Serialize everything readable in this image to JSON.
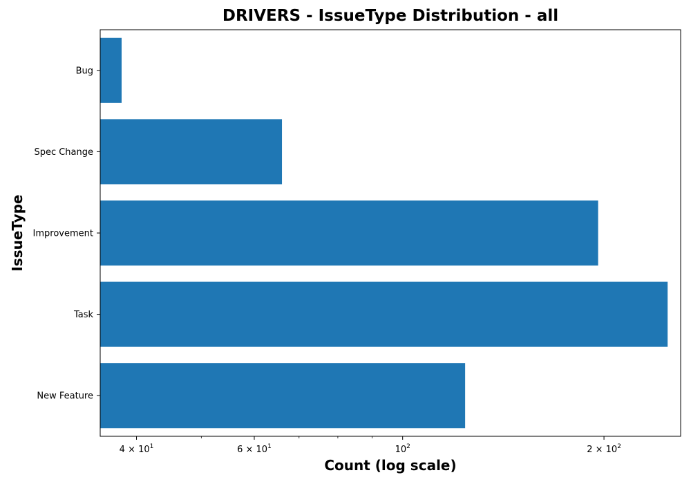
{
  "chart_data": {
    "type": "bar",
    "orientation": "horizontal",
    "title": "DRIVERS - IssueType Distribution - all",
    "xlabel": "Count (log scale)",
    "ylabel": "IssueType",
    "x_scale": "log",
    "xlim": [
      35.3,
      260.4
    ],
    "categories": [
      "Bug",
      "Spec Change",
      "Improvement",
      "Task",
      "New Feature"
    ],
    "values": [
      38,
      66,
      196,
      249,
      124
    ],
    "color": "#1f77b4",
    "major_ticks": [
      {
        "value": 40,
        "base": "4 × 10",
        "exp": "1"
      },
      {
        "value": 60,
        "base": "6 × 10",
        "exp": "1"
      },
      {
        "value": 100,
        "base": "10",
        "exp": "2"
      },
      {
        "value": 200,
        "base": "2 × 10",
        "exp": "2"
      }
    ],
    "minor_ticks": [
      50,
      70,
      80,
      90
    ],
    "grid": false,
    "legend": "none"
  }
}
